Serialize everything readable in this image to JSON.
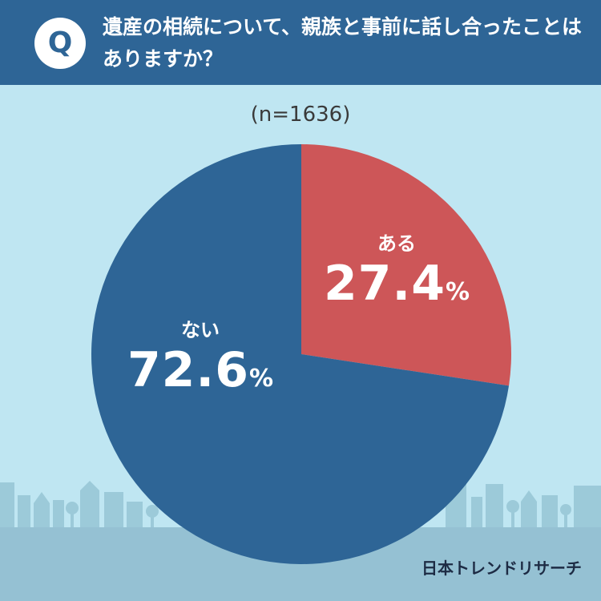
{
  "header": {
    "badge": "Q",
    "question": "遺産の相続について、親族と事前に話し合ったことはありますか？"
  },
  "sample_size": "(n=1636)",
  "brand": "日本トレンドリサーチ",
  "colors": {
    "header": "#2e6596",
    "background": "#bfe6f2",
    "slice_yes": "#cd5658",
    "slice_no": "#2e6596",
    "skyline": "#9ccad9",
    "ground": "#95c1d3"
  },
  "chart_data": {
    "type": "pie",
    "slices": [
      {
        "label": "ある",
        "value": 27.4,
        "display": "27.4",
        "unit": "%",
        "color": "#cd5658"
      },
      {
        "label": "ない",
        "value": 72.6,
        "display": "72.6",
        "unit": "%",
        "color": "#2e6596"
      }
    ]
  }
}
